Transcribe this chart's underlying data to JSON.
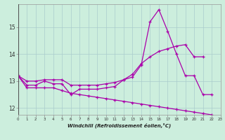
{
  "x": [
    0,
    1,
    2,
    3,
    4,
    5,
    6,
    7,
    8,
    9,
    10,
    11,
    12,
    13,
    14,
    15,
    16,
    17,
    18,
    19,
    20,
    21,
    22,
    23
  ],
  "line1": [
    13.2,
    12.85,
    12.85,
    13.0,
    12.9,
    12.9,
    12.5,
    12.7,
    12.7,
    12.7,
    12.75,
    12.8,
    13.05,
    13.15,
    13.6,
    15.2,
    15.65,
    14.85,
    14.0,
    13.2,
    13.2,
    12.5,
    12.5,
    null
  ],
  "line3": [
    13.2,
    13.0,
    13.0,
    13.05,
    13.05,
    13.05,
    12.85,
    12.85,
    12.85,
    12.85,
    12.9,
    12.95,
    13.05,
    13.25,
    13.65,
    13.9,
    14.1,
    14.2,
    14.3,
    14.35,
    13.9,
    13.9,
    null,
    null
  ],
  "line4": [
    13.2,
    12.75,
    12.75,
    12.75,
    12.75,
    12.65,
    12.55,
    12.5,
    12.45,
    12.4,
    12.35,
    12.3,
    12.25,
    12.2,
    12.15,
    12.1,
    12.05,
    12.0,
    11.95,
    11.9,
    11.85,
    11.8,
    11.75,
    null
  ],
  "xlabel": "Windchill (Refroidissement éolien,°C)",
  "xlim": [
    0,
    23
  ],
  "ylim": [
    11.75,
    15.85
  ],
  "yticks": [
    12,
    13,
    14,
    15
  ],
  "xticks": [
    0,
    1,
    2,
    3,
    4,
    5,
    6,
    7,
    8,
    9,
    10,
    11,
    12,
    13,
    14,
    15,
    16,
    17,
    18,
    19,
    20,
    21,
    22,
    23
  ],
  "line_color": "#aa00aa",
  "bg_color": "#cceedd",
  "grid_color": "#aacccc"
}
